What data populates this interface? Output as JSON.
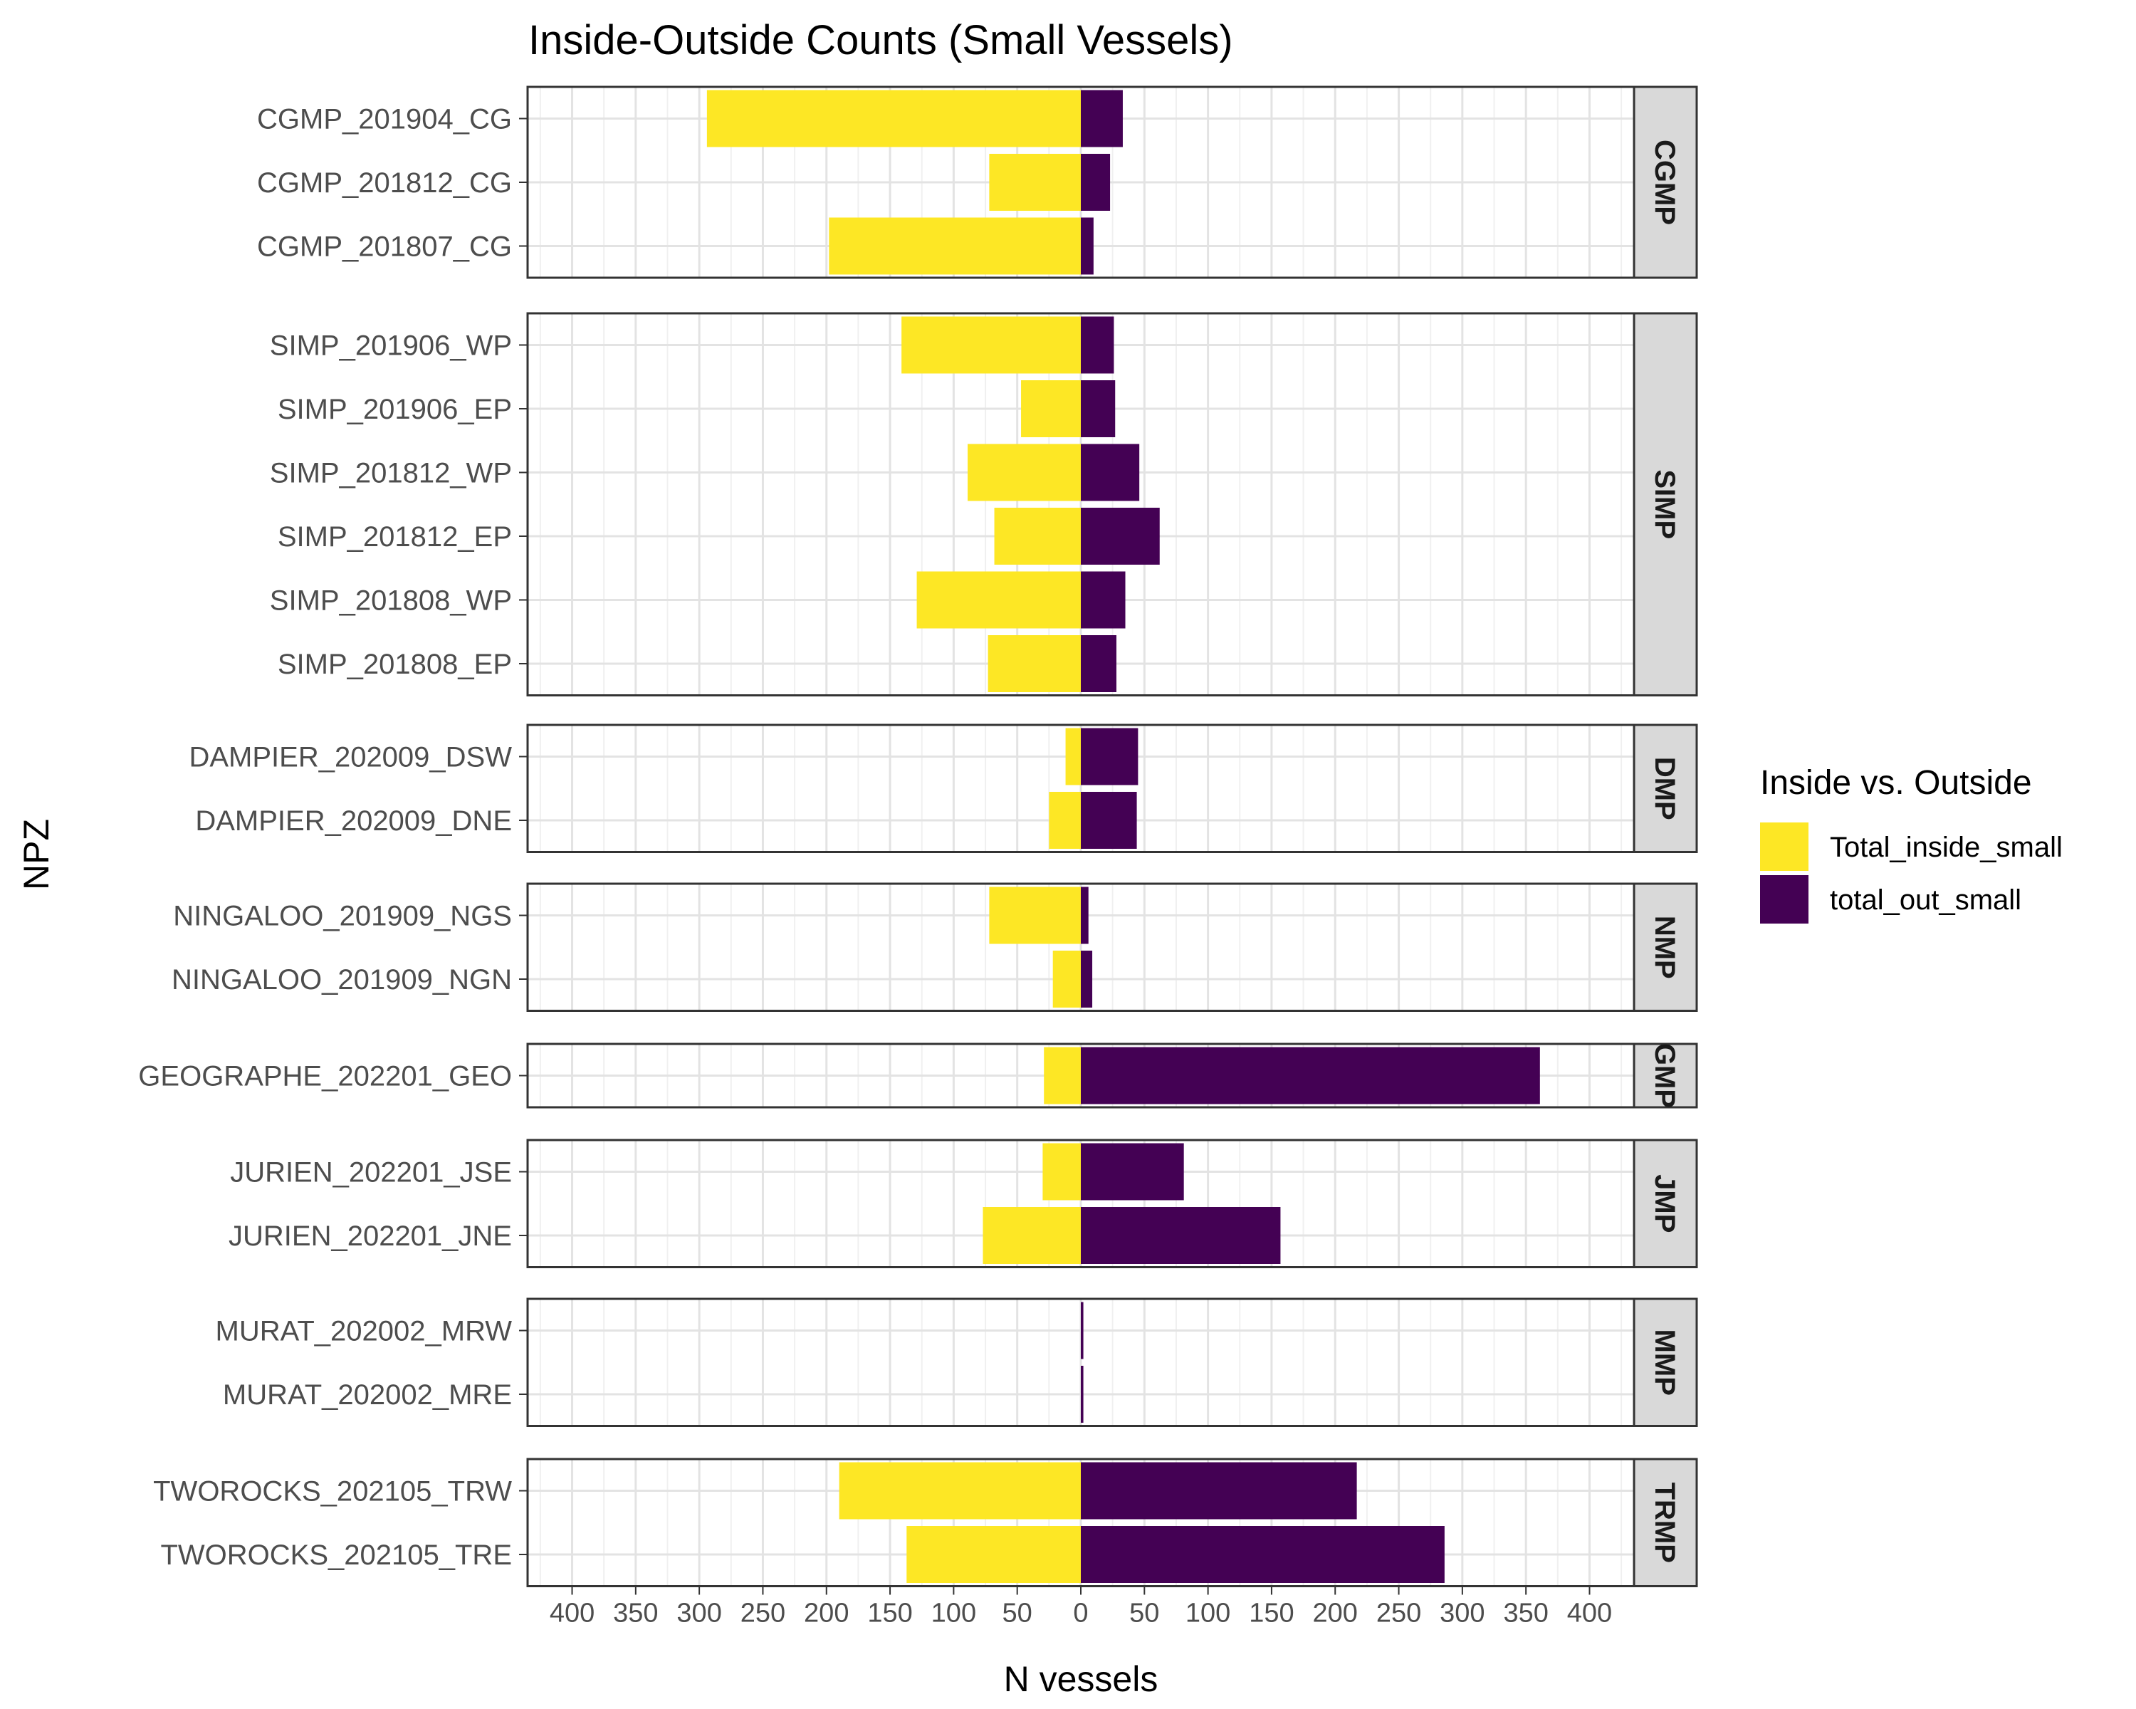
{
  "chart_data": {
    "type": "bar",
    "orientation": "horizontal",
    "title": "Inside-Outside Counts (Small Vessels)",
    "xlabel": "N vessels",
    "ylabel": "NPZ",
    "xlim": [
      -435,
      435
    ],
    "xtick_values": [
      -400,
      -350,
      -300,
      -250,
      -200,
      -150,
      -100,
      -50,
      0,
      50,
      100,
      150,
      200,
      250,
      300,
      350,
      400
    ],
    "xtick_labels": [
      "400",
      "350",
      "300",
      "250",
      "200",
      "150",
      "100",
      "50",
      "0",
      "50",
      "100",
      "150",
      "200",
      "250",
      "300",
      "350",
      "400"
    ],
    "grid": true,
    "legend": {
      "title": "Inside vs. Outside",
      "position": "right",
      "items": [
        {
          "label": "Total_inside_small",
          "color": "#FDE725"
        },
        {
          "label": "total_out_small",
          "color": "#440154"
        }
      ]
    },
    "series_colors": {
      "inside": "#FDE725",
      "outside": "#440154"
    },
    "panels": [
      {
        "strip": "CGMP",
        "rows": [
          {
            "label": "CGMP_201904_CG",
            "inside": 294,
            "outside": 33
          },
          {
            "label": "CGMP_201812_CG",
            "inside": 72,
            "outside": 23
          },
          {
            "label": "CGMP_201807_CG",
            "inside": 198,
            "outside": 10
          }
        ]
      },
      {
        "strip": "SIMP",
        "rows": [
          {
            "label": "SIMP_201906_WP",
            "inside": 141,
            "outside": 26
          },
          {
            "label": "SIMP_201906_EP",
            "inside": 47,
            "outside": 27
          },
          {
            "label": "SIMP_201812_WP",
            "inside": 89,
            "outside": 46
          },
          {
            "label": "SIMP_201812_EP",
            "inside": 68,
            "outside": 62
          },
          {
            "label": "SIMP_201808_WP",
            "inside": 129,
            "outside": 35
          },
          {
            "label": "SIMP_201808_EP",
            "inside": 73,
            "outside": 28
          }
        ]
      },
      {
        "strip": "DMP",
        "rows": [
          {
            "label": "DAMPIER_202009_DSW",
            "inside": 12,
            "outside": 45
          },
          {
            "label": "DAMPIER_202009_DNE",
            "inside": 25,
            "outside": 44
          }
        ]
      },
      {
        "strip": "NMP",
        "rows": [
          {
            "label": "NINGALOO_201909_NGS",
            "inside": 72,
            "outside": 6
          },
          {
            "label": "NINGALOO_201909_NGN",
            "inside": 22,
            "outside": 9
          }
        ]
      },
      {
        "strip": "GMP",
        "rows": [
          {
            "label": "GEOGRAPHE_202201_GEO",
            "inside": 29,
            "outside": 361
          }
        ]
      },
      {
        "strip": "JMP",
        "rows": [
          {
            "label": "JURIEN_202201_JSE",
            "inside": 30,
            "outside": 81
          },
          {
            "label": "JURIEN_202201_JNE",
            "inside": 77,
            "outside": 157
          }
        ]
      },
      {
        "strip": "MMP",
        "rows": [
          {
            "label": "MURAT_202002_MRW",
            "inside": 0,
            "outside": 2
          },
          {
            "label": "MURAT_202002_MRE",
            "inside": 0,
            "outside": 2
          }
        ]
      },
      {
        "strip": "TRMP",
        "rows": [
          {
            "label": "TWOROCKS_202105_TRW",
            "inside": 190,
            "outside": 217
          },
          {
            "label": "TWOROCKS_202105_TRE",
            "inside": 137,
            "outside": 286
          }
        ]
      }
    ]
  }
}
